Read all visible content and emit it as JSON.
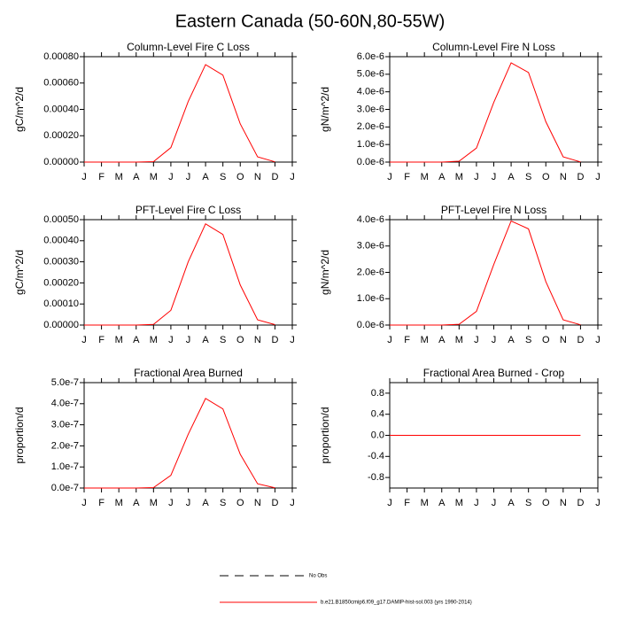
{
  "title": "Eastern Canada (50-60N,80-55W)",
  "legend": [
    {
      "name": "No Obs",
      "color": "#000000",
      "dash": true
    },
    {
      "name": "b.e21.B1850cmip6.f09_g17.DAMIP-hist-sol.003 (yrs 1990-2014)",
      "color": "#ff0000",
      "dash": false
    }
  ],
  "chart_data": [
    {
      "type": "line",
      "title": "Column-Level Fire C Loss",
      "ylabel": "gC/m^2/d",
      "x": [
        0,
        1,
        2,
        3,
        4,
        5,
        6,
        7,
        8,
        9,
        10,
        11
      ],
      "xlim": [
        0,
        12
      ],
      "xticks": [
        {
          "value": 0,
          "label": "J"
        },
        {
          "value": 1,
          "label": "F"
        },
        {
          "value": 2,
          "label": "M"
        },
        {
          "value": 3,
          "label": "A"
        },
        {
          "value": 4,
          "label": "M"
        },
        {
          "value": 5,
          "label": "J"
        },
        {
          "value": 6,
          "label": "J"
        },
        {
          "value": 7,
          "label": "A"
        },
        {
          "value": 8,
          "label": "S"
        },
        {
          "value": 9,
          "label": "O"
        },
        {
          "value": 10,
          "label": "N"
        },
        {
          "value": 11,
          "label": "D"
        },
        {
          "value": 12,
          "label": "J"
        }
      ],
      "ylim": [
        0,
        0.0008
      ],
      "yticks": [
        {
          "value": 0,
          "label": "0.00000"
        },
        {
          "value": 0.0002,
          "label": "0.00020"
        },
        {
          "value": 0.0004,
          "label": "0.00040"
        },
        {
          "value": 0.0006,
          "label": "0.00060"
        },
        {
          "value": 0.0008,
          "label": "0.00080"
        }
      ],
      "series": [
        {
          "color": "#ff0000",
          "values": [
            0,
            0,
            0,
            0,
            3e-06,
            0.00011,
            0.00046,
            0.00074,
            0.00066,
            0.00029,
            4e-05,
            2e-06
          ]
        }
      ]
    },
    {
      "type": "line",
      "title": "Column-Level Fire N Loss",
      "ylabel": "gN/m^2/d",
      "x": [
        0,
        1,
        2,
        3,
        4,
        5,
        6,
        7,
        8,
        9,
        10,
        11
      ],
      "xlim": [
        0,
        12
      ],
      "xticks": [
        {
          "value": 0,
          "label": "J"
        },
        {
          "value": 1,
          "label": "F"
        },
        {
          "value": 2,
          "label": "M"
        },
        {
          "value": 3,
          "label": "A"
        },
        {
          "value": 4,
          "label": "M"
        },
        {
          "value": 5,
          "label": "J"
        },
        {
          "value": 6,
          "label": "J"
        },
        {
          "value": 7,
          "label": "A"
        },
        {
          "value": 8,
          "label": "S"
        },
        {
          "value": 9,
          "label": "O"
        },
        {
          "value": 10,
          "label": "N"
        },
        {
          "value": 11,
          "label": "D"
        },
        {
          "value": 12,
          "label": "J"
        }
      ],
      "ylim": [
        0,
        6e-06
      ],
      "yticks": [
        {
          "value": 0,
          "label": "0.0e-6"
        },
        {
          "value": 1e-06,
          "label": "1.0e-6"
        },
        {
          "value": 2e-06,
          "label": "2.0e-6"
        },
        {
          "value": 3e-06,
          "label": "3.0e-6"
        },
        {
          "value": 4e-06,
          "label": "4.0e-6"
        },
        {
          "value": 5e-06,
          "label": "5.0e-6"
        },
        {
          "value": 6e-06,
          "label": "6.0e-6"
        }
      ],
      "series": [
        {
          "color": "#ff0000",
          "values": [
            0,
            0,
            0,
            0,
            5e-08,
            8e-07,
            3.4e-06,
            5.65e-06,
            5.1e-06,
            2.3e-06,
            3e-07,
            1e-08
          ]
        }
      ]
    },
    {
      "type": "line",
      "title": "PFT-Level Fire C Loss",
      "ylabel": "gC/m^2/d",
      "x": [
        0,
        1,
        2,
        3,
        4,
        5,
        6,
        7,
        8,
        9,
        10,
        11
      ],
      "xlim": [
        0,
        12
      ],
      "xticks": [
        {
          "value": 0,
          "label": "J"
        },
        {
          "value": 1,
          "label": "F"
        },
        {
          "value": 2,
          "label": "M"
        },
        {
          "value": 3,
          "label": "A"
        },
        {
          "value": 4,
          "label": "M"
        },
        {
          "value": 5,
          "label": "J"
        },
        {
          "value": 6,
          "label": "J"
        },
        {
          "value": 7,
          "label": "A"
        },
        {
          "value": 8,
          "label": "S"
        },
        {
          "value": 9,
          "label": "O"
        },
        {
          "value": 10,
          "label": "N"
        },
        {
          "value": 11,
          "label": "D"
        },
        {
          "value": 12,
          "label": "J"
        }
      ],
      "ylim": [
        0,
        0.0005
      ],
      "yticks": [
        {
          "value": 0,
          "label": "0.00000"
        },
        {
          "value": 0.0001,
          "label": "0.00010"
        },
        {
          "value": 0.0002,
          "label": "0.00020"
        },
        {
          "value": 0.0003,
          "label": "0.00030"
        },
        {
          "value": 0.0004,
          "label": "0.00040"
        },
        {
          "value": 0.0005,
          "label": "0.00050"
        }
      ],
      "series": [
        {
          "color": "#ff0000",
          "values": [
            0,
            0,
            0,
            0,
            3e-06,
            7e-05,
            0.0003,
            0.00048,
            0.00043,
            0.00019,
            2.5e-05,
            2e-06
          ]
        }
      ]
    },
    {
      "type": "line",
      "title": "PFT-Level Fire N Loss",
      "ylabel": "gN/m^2/d",
      "x": [
        0,
        1,
        2,
        3,
        4,
        5,
        6,
        7,
        8,
        9,
        10,
        11
      ],
      "xlim": [
        0,
        12
      ],
      "xticks": [
        {
          "value": 0,
          "label": "J"
        },
        {
          "value": 1,
          "label": "F"
        },
        {
          "value": 2,
          "label": "M"
        },
        {
          "value": 3,
          "label": "A"
        },
        {
          "value": 4,
          "label": "M"
        },
        {
          "value": 5,
          "label": "J"
        },
        {
          "value": 6,
          "label": "J"
        },
        {
          "value": 7,
          "label": "A"
        },
        {
          "value": 8,
          "label": "S"
        },
        {
          "value": 9,
          "label": "O"
        },
        {
          "value": 10,
          "label": "N"
        },
        {
          "value": 11,
          "label": "D"
        },
        {
          "value": 12,
          "label": "J"
        }
      ],
      "ylim": [
        0,
        4e-06
      ],
      "yticks": [
        {
          "value": 0,
          "label": "0.0e-6"
        },
        {
          "value": 1e-06,
          "label": "1.0e-6"
        },
        {
          "value": 2e-06,
          "label": "2.0e-6"
        },
        {
          "value": 3e-06,
          "label": "3.0e-6"
        },
        {
          "value": 4e-06,
          "label": "4.0e-6"
        }
      ],
      "series": [
        {
          "color": "#ff0000",
          "values": [
            0,
            0,
            0,
            0,
            3e-08,
            5.2e-07,
            2.3e-06,
            3.95e-06,
            3.65e-06,
            1.65e-06,
            2e-07,
            1e-08
          ]
        }
      ]
    },
    {
      "type": "line",
      "title": "Fractional Area Burned",
      "ylabel": "proportion/d",
      "x": [
        0,
        1,
        2,
        3,
        4,
        5,
        6,
        7,
        8,
        9,
        10,
        11
      ],
      "xlim": [
        0,
        12
      ],
      "xticks": [
        {
          "value": 0,
          "label": "J"
        },
        {
          "value": 1,
          "label": "F"
        },
        {
          "value": 2,
          "label": "M"
        },
        {
          "value": 3,
          "label": "A"
        },
        {
          "value": 4,
          "label": "M"
        },
        {
          "value": 5,
          "label": "J"
        },
        {
          "value": 6,
          "label": "J"
        },
        {
          "value": 7,
          "label": "A"
        },
        {
          "value": 8,
          "label": "S"
        },
        {
          "value": 9,
          "label": "O"
        },
        {
          "value": 10,
          "label": "N"
        },
        {
          "value": 11,
          "label": "D"
        },
        {
          "value": 12,
          "label": "J"
        }
      ],
      "ylim": [
        0,
        5e-07
      ],
      "yticks": [
        {
          "value": 0,
          "label": "0.0e-7"
        },
        {
          "value": 1e-07,
          "label": "1.0e-7"
        },
        {
          "value": 2e-07,
          "label": "2.0e-7"
        },
        {
          "value": 3e-07,
          "label": "3.0e-7"
        },
        {
          "value": 4e-07,
          "label": "4.0e-7"
        },
        {
          "value": 5e-07,
          "label": "5.0e-7"
        }
      ],
      "series": [
        {
          "color": "#ff0000",
          "values": [
            0,
            0,
            0,
            0,
            2e-09,
            6e-08,
            2.55e-07,
            4.25e-07,
            3.75e-07,
            1.6e-07,
            2e-08,
            1e-09
          ]
        }
      ]
    },
    {
      "type": "line",
      "title": "Fractional Area Burned - Crop",
      "ylabel": "proportion/d",
      "x": [
        0,
        1,
        2,
        3,
        4,
        5,
        6,
        7,
        8,
        9,
        10,
        11
      ],
      "xlim": [
        0,
        12
      ],
      "xticks": [
        {
          "value": 0,
          "label": "J"
        },
        {
          "value": 1,
          "label": "F"
        },
        {
          "value": 2,
          "label": "M"
        },
        {
          "value": 3,
          "label": "A"
        },
        {
          "value": 4,
          "label": "M"
        },
        {
          "value": 5,
          "label": "J"
        },
        {
          "value": 6,
          "label": "J"
        },
        {
          "value": 7,
          "label": "A"
        },
        {
          "value": 8,
          "label": "S"
        },
        {
          "value": 9,
          "label": "O"
        },
        {
          "value": 10,
          "label": "N"
        },
        {
          "value": 11,
          "label": "D"
        },
        {
          "value": 12,
          "label": "J"
        }
      ],
      "ylim": [
        -1,
        1
      ],
      "yticks": [
        -0.8,
        -0.4,
        {
          "value": 0,
          "label": "0.0"
        },
        0.4,
        0.8
      ],
      "series": [
        {
          "color": "#ff0000",
          "values": [
            0,
            0,
            0,
            0,
            0,
            0,
            0,
            0,
            0,
            0,
            0,
            0
          ]
        }
      ]
    }
  ]
}
